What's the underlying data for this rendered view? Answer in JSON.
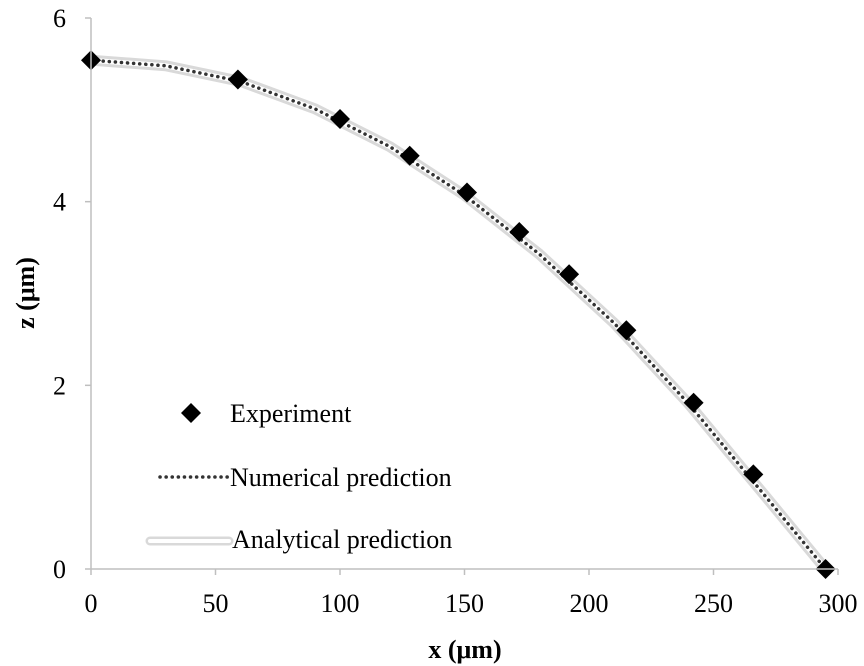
{
  "chart_data": {
    "type": "scatter",
    "xlabel": "x (μm)",
    "ylabel": "z (μm)",
    "xlim": [
      0,
      300
    ],
    "ylim": [
      0,
      6
    ],
    "xticks": [
      "0",
      "50",
      "100",
      "150",
      "200",
      "250",
      "300"
    ],
    "yticks": [
      "0",
      "2",
      "4",
      "6"
    ],
    "grid": false,
    "legend_position": "bottom-left",
    "series": [
      {
        "name": "Experiment",
        "kind": "scatter",
        "marker": "diamond",
        "color": "#000000",
        "x": [
          0,
          59,
          100,
          128,
          151,
          172,
          192,
          215,
          242,
          266,
          295
        ],
        "y": [
          5.54,
          5.33,
          4.9,
          4.5,
          4.1,
          3.67,
          3.21,
          2.6,
          1.81,
          1.03,
          0
        ]
      },
      {
        "name": "Numerical prediction",
        "kind": "line",
        "style": "dotted",
        "color": "#333333",
        "x": [
          0,
          30,
          60,
          90,
          120,
          150,
          180,
          210,
          240,
          270,
          295
        ],
        "y": [
          5.54,
          5.48,
          5.31,
          5.01,
          4.6,
          4.07,
          3.43,
          2.68,
          1.8,
          0.82,
          0
        ]
      },
      {
        "name": "Analytical prediction",
        "kind": "line",
        "style": "double",
        "color": "#dddddd",
        "x": [
          0,
          30,
          60,
          90,
          120,
          150,
          180,
          210,
          240,
          270,
          295
        ],
        "y": [
          5.54,
          5.48,
          5.31,
          5.01,
          4.6,
          4.07,
          3.43,
          2.68,
          1.8,
          0.82,
          0
        ]
      }
    ]
  }
}
